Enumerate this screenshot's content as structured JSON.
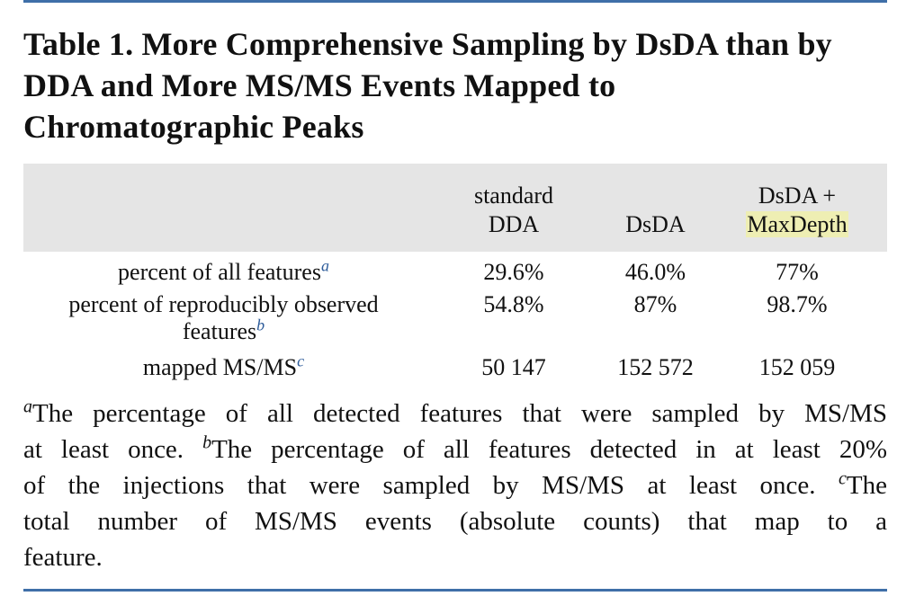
{
  "title": {
    "lines": [
      "Table 1. More Comprehensive Sampling by DsDA than by",
      "DDA and More MS/MS Events Mapped to",
      "Chromatographic Peaks"
    ]
  },
  "table": {
    "headers": {
      "col1": {
        "line1": "standard",
        "line2": "DDA"
      },
      "col2": {
        "line1": "",
        "line2": "DsDA"
      },
      "col3": {
        "line1": "DsDA +",
        "line2": "MaxDepth"
      }
    },
    "rows": [
      {
        "label": "percent of all features",
        "label_line2": "",
        "footnote": "a",
        "values": [
          "29.6%",
          "46.0%",
          "77%"
        ]
      },
      {
        "label": "percent of reproducibly observed",
        "label_line2": "features",
        "footnote": "b",
        "values": [
          "54.8%",
          "87%",
          "98.7%"
        ]
      },
      {
        "label": "mapped MS/MS",
        "label_line2": "",
        "footnote": "c",
        "values": [
          "50 147",
          "152 572",
          "152 059"
        ]
      }
    ]
  },
  "footnotes": {
    "lines": [
      {
        "marker": "a",
        "text": "The percentage of all detected features that were sampled by MS/MS"
      },
      {
        "text": "at least once. ",
        "marker": "b",
        "text2": "The percentage of all features detected in at least 20%"
      },
      {
        "text": "of the injections that were sampled by MS/MS at least once. ",
        "marker": "c",
        "text2": "The"
      },
      {
        "text": "total number of MS/MS events (absolute counts) that map to a"
      },
      {
        "text": "feature."
      }
    ]
  },
  "colors": {
    "rule": "#3f6fa8",
    "header_background": "#e5e5e5",
    "highlight": "#eeeeb3",
    "footnote_marker": "#2e5c9a"
  }
}
